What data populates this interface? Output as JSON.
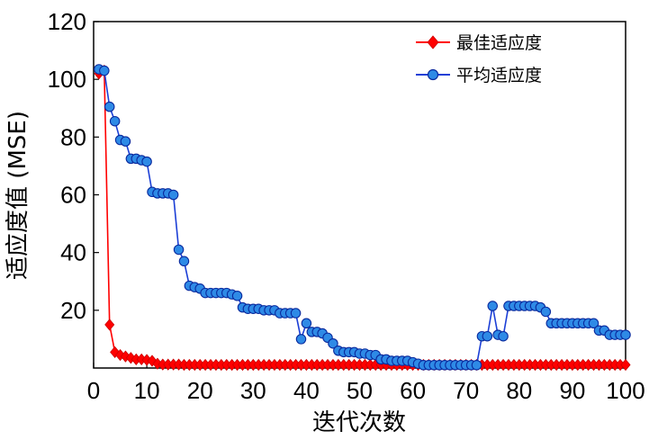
{
  "chart_data": {
    "type": "line",
    "xlabel": "迭代次数",
    "ylabel": "适应度值 (MSE)",
    "xlim": [
      0,
      100
    ],
    "ylim": [
      0,
      120
    ],
    "xticks": [
      0,
      10,
      20,
      30,
      40,
      50,
      60,
      70,
      80,
      90,
      100
    ],
    "yticks": [
      20,
      40,
      60,
      80,
      100,
      120
    ],
    "grid": false,
    "legend_position": "top-right",
    "x": [
      1,
      2,
      3,
      4,
      5,
      6,
      7,
      8,
      9,
      10,
      11,
      12,
      13,
      14,
      15,
      16,
      17,
      18,
      19,
      20,
      21,
      22,
      23,
      24,
      25,
      26,
      27,
      28,
      29,
      30,
      31,
      32,
      33,
      34,
      35,
      36,
      37,
      38,
      39,
      40,
      41,
      42,
      43,
      44,
      45,
      46,
      47,
      48,
      49,
      50,
      51,
      52,
      53,
      54,
      55,
      56,
      57,
      58,
      59,
      60,
      61,
      62,
      63,
      64,
      65,
      66,
      67,
      68,
      69,
      70,
      71,
      72,
      73,
      74,
      75,
      76,
      77,
      78,
      79,
      80,
      81,
      82,
      83,
      84,
      85,
      86,
      87,
      88,
      89,
      90,
      91,
      92,
      93,
      94,
      95,
      96,
      97,
      98,
      99,
      100
    ],
    "series": [
      {
        "name": "最佳适应度",
        "color": "#ff0000",
        "marker": "diamond",
        "values": [
          102,
          103,
          15,
          5.5,
          4.5,
          4,
          3.5,
          3,
          3,
          2.8,
          2.5,
          1.5,
          1.2,
          1.2,
          1.2,
          1.2,
          1.1,
          1.1,
          1.1,
          1.1,
          1.1,
          1.1,
          1.1,
          1.1,
          1.1,
          1.1,
          1.1,
          1.1,
          1.1,
          1.1,
          1.1,
          1.1,
          1.1,
          1.1,
          1.1,
          1.1,
          1.1,
          1.1,
          1.1,
          1.1,
          1.1,
          1.1,
          1.1,
          1.1,
          1.1,
          1.1,
          1.1,
          1.1,
          1.1,
          1.1,
          1.1,
          1.1,
          1.1,
          1.1,
          1.1,
          1.1,
          1.1,
          1.1,
          1.1,
          1.1,
          1.1,
          1.1,
          1.1,
          1.1,
          1.1,
          1.1,
          1.1,
          1.1,
          1.1,
          1.1,
          1.1,
          1.1,
          1.1,
          1.1,
          1.1,
          1.1,
          1.1,
          1.1,
          1.1,
          1.1,
          1.1,
          1.1,
          1.1,
          1.1,
          1.1,
          1.1,
          1.1,
          1.1,
          1.1,
          1.1,
          1.1,
          1.1,
          1.1,
          1.1,
          1.1,
          1.1,
          1.1,
          1.1,
          1.1,
          1.1
        ]
      },
      {
        "name": "平均适应度",
        "color": "#1c3fd6",
        "marker": "circle",
        "values": [
          103.5,
          103,
          90.5,
          85.5,
          79,
          78.5,
          72.5,
          72.5,
          72,
          71.5,
          61,
          60.5,
          60.5,
          60.5,
          60,
          41,
          37,
          28.5,
          28,
          27.5,
          26,
          26,
          26,
          26,
          26,
          25.5,
          25,
          21,
          20.5,
          20.5,
          20.5,
          20,
          20,
          20,
          19,
          19,
          19,
          19,
          10,
          15.5,
          12.5,
          12.5,
          12,
          10.5,
          8.5,
          6,
          5.5,
          5.5,
          5.5,
          5,
          5,
          4.5,
          4.5,
          3,
          3,
          2.5,
          2.5,
          2.5,
          2.5,
          2,
          1.5,
          1,
          1,
          1,
          1,
          1,
          1,
          1,
          1,
          1,
          1,
          1,
          11,
          11,
          21.5,
          11.5,
          11,
          21.5,
          21.5,
          21.5,
          21.5,
          21.5,
          21.5,
          21,
          19.5,
          15.5,
          15.5,
          15.5,
          15.5,
          15.5,
          15.5,
          15.5,
          15.5,
          15.5,
          13,
          13,
          11.5,
          11.5,
          11.5,
          11.5
        ]
      }
    ]
  }
}
